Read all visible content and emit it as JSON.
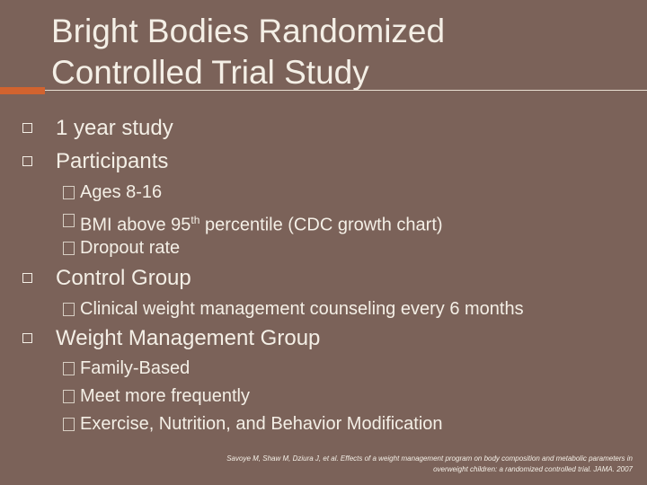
{
  "slide": {
    "title": "Bright Bodies Randomized Controlled Trial Study",
    "bullets": [
      {
        "text": "1 year study"
      },
      {
        "text": "Participants",
        "sub": [
          {
            "text": "Ages 8-16"
          },
          {
            "text": "BMI above 95",
            "sup": "th",
            "rest": "percentile (CDC growth chart)"
          },
          {
            "text": "Dropout rate"
          }
        ]
      },
      {
        "text": "Control Group",
        "sub": [
          {
            "text": "Clinical weight management counseling every 6 months"
          }
        ]
      },
      {
        "text": "Weight Management Group",
        "sub": [
          {
            "text": "Family-Based"
          },
          {
            "text": "Meet more frequently"
          },
          {
            "text": "Exercise, Nutrition, and Behavior Modification"
          }
        ]
      }
    ],
    "citation": [
      "Savoye M, Shaw M, Dziura J, et al. Effects of a weight management program on body composition and metabolic parameters in",
      "overweight children: a randomized controlled trial. JAMA. 2007"
    ]
  }
}
